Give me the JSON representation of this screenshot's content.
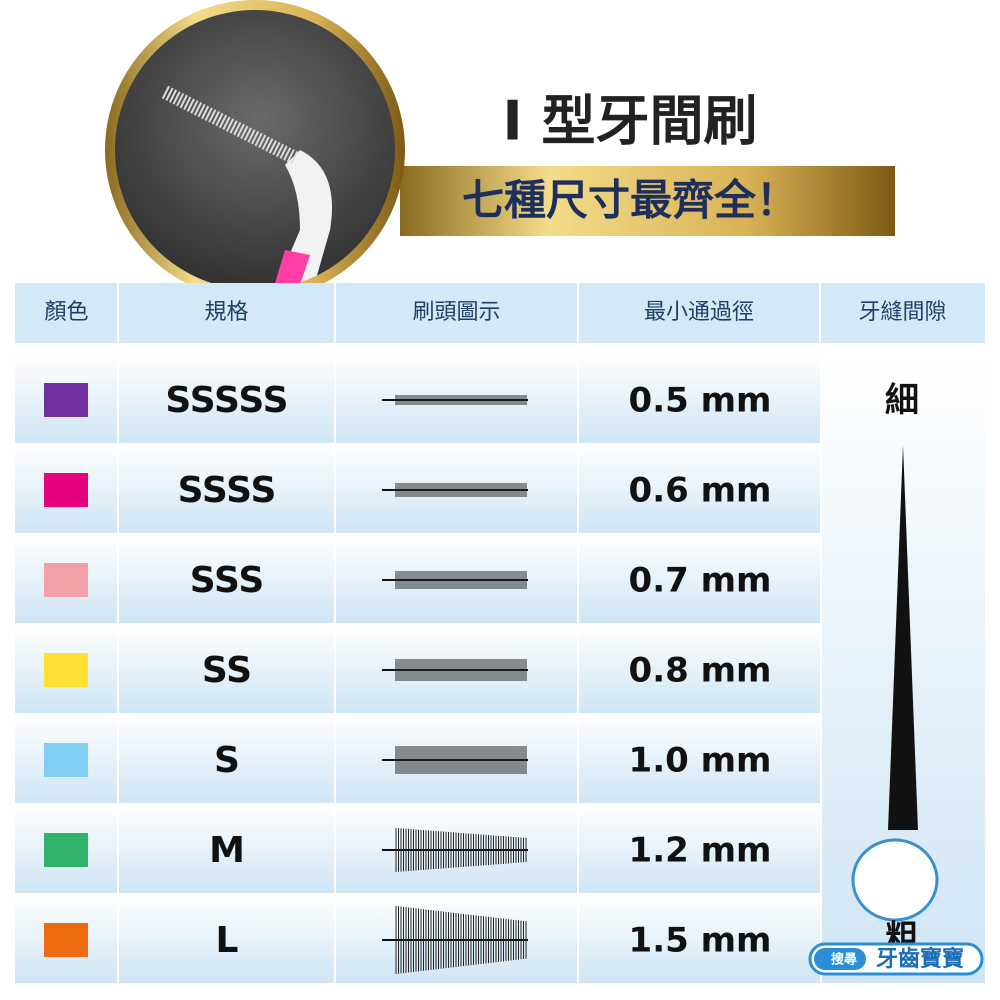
{
  "header": {
    "title": "I 型牙間刷",
    "subtitle": "七種尺寸最齊全！"
  },
  "table": {
    "columns": [
      "顏色",
      "規格",
      "刷頭圖示",
      "最小通過徑",
      "牙縫間隙"
    ],
    "rows": [
      {
        "color": "#7030a0",
        "size": "SSSSS",
        "diameter": "0.5 mm"
      },
      {
        "color": "#e6007e",
        "size": "SSSS",
        "diameter": "0.6 mm"
      },
      {
        "color": "#f4a0a8",
        "size": "SSS",
        "diameter": "0.7 mm"
      },
      {
        "color": "#ffe033",
        "size": "SS",
        "diameter": "0.8 mm"
      },
      {
        "color": "#7fcff4",
        "size": "S",
        "diameter": "1.0 mm"
      },
      {
        "color": "#2fb36b",
        "size": "M",
        "diameter": "1.2 mm"
      },
      {
        "color": "#ee6a10",
        "size": "L",
        "diameter": "1.5 mm"
      }
    ],
    "gap_thin": "細",
    "gap_thick": "粗"
  },
  "watermark": {
    "search": "搜尋",
    "brand": "牙齒寶寶"
  }
}
